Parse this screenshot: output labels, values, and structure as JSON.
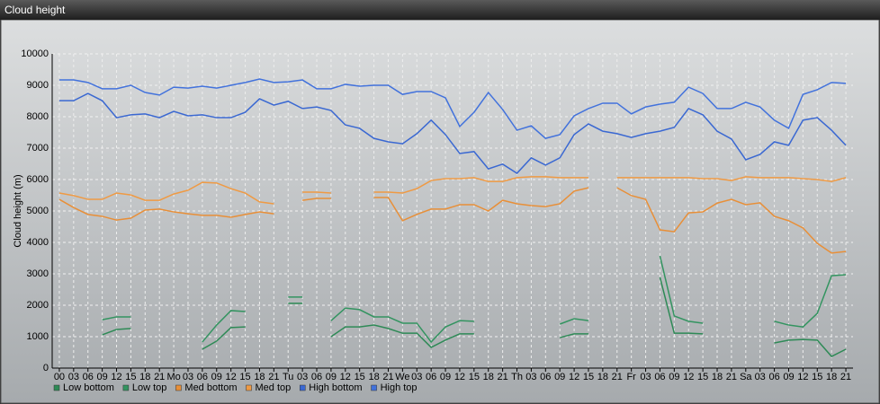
{
  "chart_data": {
    "type": "line",
    "title": "Cloud height",
    "y_label": "Cloud height (m)",
    "categories": [
      "00",
      "03",
      "06",
      "09",
      "12",
      "15",
      "18",
      "21",
      "Mo",
      "03",
      "06",
      "09",
      "12",
      "15",
      "18",
      "21",
      "Tu",
      "03",
      "06",
      "09",
      "12",
      "15",
      "18",
      "21",
      "We",
      "03",
      "06",
      "09",
      "12",
      "15",
      "18",
      "21",
      "Th",
      "03",
      "06",
      "09",
      "12",
      "15",
      "18",
      "21",
      "Fr",
      "03",
      "06",
      "09",
      "12",
      "15",
      "18",
      "21",
      "Sa",
      "03",
      "06",
      "09",
      "12",
      "15",
      "18",
      "21"
    ],
    "ylim": [
      0,
      10000
    ],
    "yticks": [
      0,
      1000,
      2000,
      3000,
      4000,
      5000,
      6000,
      7000,
      8000,
      9000,
      10000
    ],
    "grid": true,
    "series": [
      {
        "name": "Low bottom",
        "color": "#2e8a56",
        "values": [
          null,
          null,
          null,
          1060,
          1230,
          1260,
          null,
          null,
          null,
          null,
          600,
          860,
          1290,
          1310,
          null,
          null,
          2060,
          2060,
          null,
          1000,
          1310,
          1310,
          1370,
          1260,
          1110,
          1110,
          660,
          890,
          1090,
          1090,
          null,
          null,
          null,
          null,
          null,
          970,
          1090,
          1090,
          null,
          null,
          null,
          null,
          2890,
          1110,
          1110,
          1090,
          null,
          null,
          null,
          null,
          800,
          890,
          910,
          890,
          370,
          600
        ]
      },
      {
        "name": "Low top",
        "color": "#339460",
        "values": [
          null,
          null,
          null,
          1540,
          1630,
          1630,
          null,
          null,
          null,
          null,
          830,
          1370,
          1830,
          1800,
          null,
          null,
          2260,
          2260,
          null,
          1510,
          1910,
          1860,
          1630,
          1630,
          1430,
          1430,
          830,
          1310,
          1510,
          1490,
          null,
          null,
          null,
          null,
          null,
          1400,
          1570,
          1510,
          null,
          null,
          null,
          null,
          3570,
          1660,
          1490,
          1430,
          null,
          null,
          null,
          null,
          1490,
          1370,
          1310,
          1740,
          2940,
          2970
        ]
      },
      {
        "name": "Med bottom",
        "color": "#e88f38",
        "values": [
          5370,
          5110,
          4890,
          4830,
          4710,
          4770,
          5030,
          5060,
          4970,
          4910,
          4860,
          4860,
          4800,
          4890,
          4970,
          4910,
          null,
          5340,
          5400,
          5400,
          null,
          null,
          5430,
          5430,
          4690,
          4890,
          5060,
          5060,
          5200,
          5200,
          5000,
          5340,
          5230,
          5170,
          5140,
          5230,
          5630,
          5740,
          null,
          5740,
          5490,
          5370,
          4400,
          4340,
          4940,
          4970,
          5250,
          5370,
          5200,
          5260,
          4830,
          4690,
          4460,
          3970,
          3660,
          3710
        ]
      },
      {
        "name": "Med top",
        "color": "#ef9a44",
        "values": [
          5570,
          5490,
          5370,
          5370,
          5570,
          5510,
          5340,
          5340,
          5540,
          5660,
          5910,
          5890,
          5710,
          5570,
          5290,
          5230,
          null,
          5600,
          5600,
          5570,
          null,
          null,
          5600,
          5600,
          5570,
          5710,
          5970,
          6030,
          6030,
          6060,
          5940,
          5940,
          6060,
          6090,
          6090,
          6060,
          6060,
          6060,
          null,
          6060,
          6060,
          6060,
          6060,
          6060,
          6060,
          6030,
          6030,
          5970,
          6090,
          6060,
          6060,
          6060,
          6030,
          6000,
          5940,
          6060
        ]
      },
      {
        "name": "High bottom",
        "color": "#3a68d2",
        "values": [
          8510,
          8510,
          8740,
          8510,
          7970,
          8060,
          8090,
          7970,
          8170,
          8030,
          8060,
          7970,
          7970,
          8140,
          8570,
          8370,
          8490,
          8260,
          8310,
          8200,
          7740,
          7630,
          7310,
          7200,
          7140,
          7460,
          7890,
          7430,
          6830,
          6890,
          6340,
          6490,
          6200,
          6690,
          6460,
          6690,
          7430,
          7770,
          7540,
          7460,
          7340,
          7460,
          7540,
          7660,
          8260,
          8060,
          7540,
          7290,
          6630,
          6800,
          7200,
          7090,
          7890,
          7970,
          7570,
          7090
        ]
      },
      {
        "name": "High top",
        "color": "#4272dc",
        "values": [
          9170,
          9170,
          9090,
          8890,
          8890,
          9000,
          8770,
          8690,
          8940,
          8910,
          8970,
          8910,
          9000,
          9090,
          9200,
          9090,
          9110,
          9170,
          8890,
          8890,
          9030,
          8970,
          9000,
          9000,
          8710,
          8800,
          8800,
          8600,
          7690,
          8140,
          8770,
          8230,
          7570,
          7710,
          7310,
          7430,
          8030,
          8260,
          8430,
          8430,
          8090,
          8310,
          8400,
          8460,
          8940,
          8740,
          8260,
          8260,
          8460,
          8310,
          7890,
          7630,
          8710,
          8860,
          9090,
          9060
        ]
      }
    ]
  }
}
